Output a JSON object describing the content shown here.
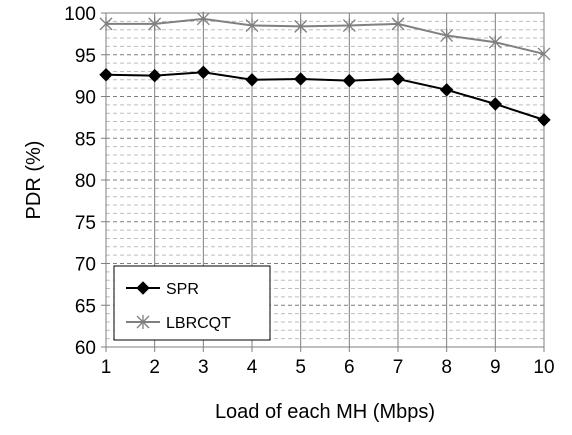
{
  "chart_data": {
    "type": "line",
    "xlabel": "Load of each MH (Mbps)",
    "ylabel": "PDR (%)",
    "x": [
      1,
      2,
      3,
      4,
      5,
      6,
      7,
      8,
      9,
      10
    ],
    "xlim": [
      1,
      10
    ],
    "ylim": [
      60,
      100
    ],
    "y_ticks": [
      60,
      65,
      70,
      75,
      80,
      85,
      90,
      95,
      100
    ],
    "y_minor_step": 1,
    "grid": "dashed horizontal (major and minor), solid vertical at each x",
    "legend_position": "lower-left",
    "series": [
      {
        "name": "SPR",
        "marker": "diamond",
        "color": "#000000",
        "values": [
          92.6,
          92.5,
          92.9,
          92.0,
          92.1,
          91.9,
          92.1,
          90.8,
          89.1,
          87.2
        ]
      },
      {
        "name": "LBRCQT",
        "marker": "star",
        "color": "#808080",
        "values": [
          98.7,
          98.7,
          99.3,
          98.5,
          98.4,
          98.5,
          98.7,
          97.3,
          96.5,
          95.1
        ]
      }
    ]
  }
}
